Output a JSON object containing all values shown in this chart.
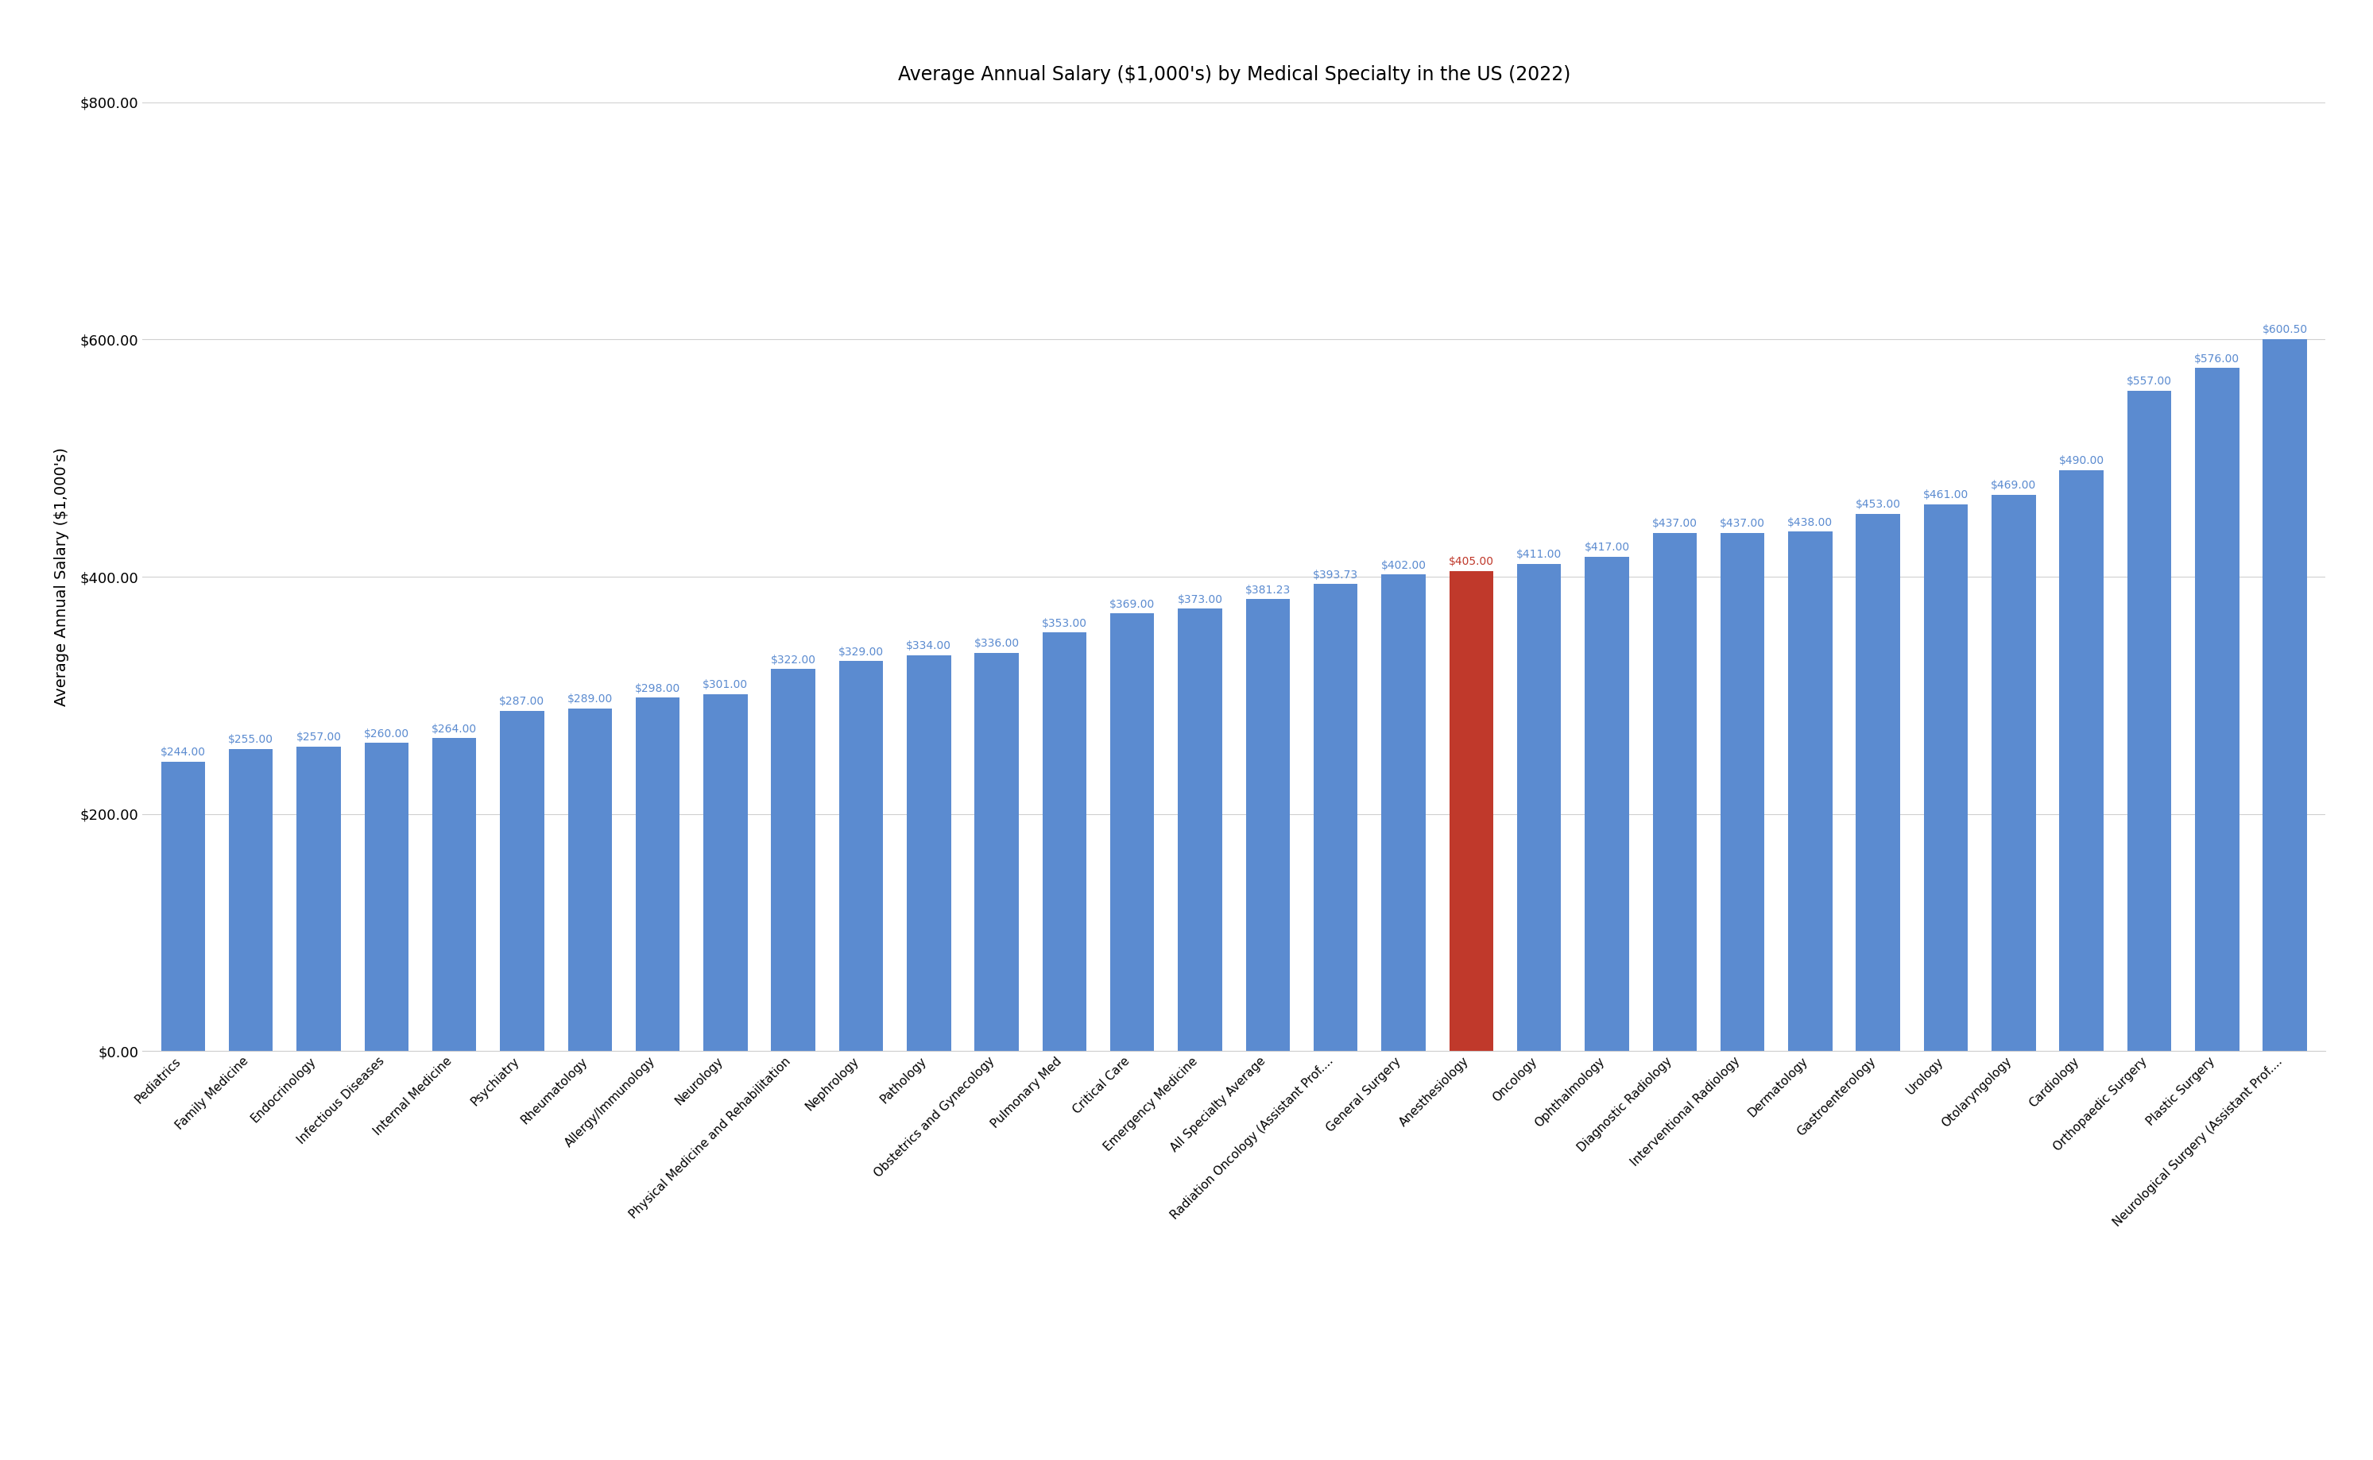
{
  "title": "Average Annual Salary ($1,000's) by Medical Specialty in the US (2022)",
  "ylabel": "Average Annual Salary ($1,000's)",
  "categories": [
    "Pediatrics",
    "Family Medicine",
    "Endocrinology",
    "Infectious Diseases",
    "Internal Medicine",
    "Psychiatry",
    "Rheumatology",
    "Allergy/Immunology",
    "Neurology",
    "Physical Medicine and Rehabilitation",
    "Nephrology",
    "Pathology",
    "Obstetrics and Gynecology",
    "Pulmonary Med",
    "Critical Care",
    "Emergency Medicine",
    "All Specialty Average",
    "Radiation Oncology (Assistant Prof....",
    "General Surgery",
    "Anesthesiology",
    "Oncology",
    "Ophthalmology",
    "Diagnostic Radiology",
    "Interventional Radiology",
    "Dermatology",
    "Gastroenterology",
    "Urology",
    "Otolaryngology",
    "Cardiology",
    "Orthopaedic Surgery",
    "Plastic Surgery",
    "Neurological Surgery (Assistant Prof...."
  ],
  "values": [
    244.0,
    255.0,
    257.0,
    260.0,
    264.0,
    287.0,
    289.0,
    298.0,
    301.0,
    322.0,
    329.0,
    334.0,
    336.0,
    353.0,
    369.0,
    373.0,
    381.23,
    393.73,
    402.0,
    405.0,
    411.0,
    417.0,
    437.0,
    437.0,
    438.0,
    453.0,
    461.0,
    469.0,
    490.0,
    557.0,
    576.0,
    600.5
  ],
  "bar_colors": [
    "#5b8bd0",
    "#5b8bd0",
    "#5b8bd0",
    "#5b8bd0",
    "#5b8bd0",
    "#5b8bd0",
    "#5b8bd0",
    "#5b8bd0",
    "#5b8bd0",
    "#5b8bd0",
    "#5b8bd0",
    "#5b8bd0",
    "#5b8bd0",
    "#5b8bd0",
    "#5b8bd0",
    "#5b8bd0",
    "#5b8bd0",
    "#5b8bd0",
    "#5b8bd0",
    "#c0392b",
    "#5b8bd0",
    "#5b8bd0",
    "#5b8bd0",
    "#5b8bd0",
    "#5b8bd0",
    "#5b8bd0",
    "#5b8bd0",
    "#5b8bd0",
    "#5b8bd0",
    "#5b8bd0",
    "#5b8bd0",
    "#5b8bd0"
  ],
  "label_colors": [
    "#5b8bd0",
    "#5b8bd0",
    "#5b8bd0",
    "#5b8bd0",
    "#5b8bd0",
    "#5b8bd0",
    "#5b8bd0",
    "#5b8bd0",
    "#5b8bd0",
    "#5b8bd0",
    "#5b8bd0",
    "#5b8bd0",
    "#5b8bd0",
    "#5b8bd0",
    "#5b8bd0",
    "#5b8bd0",
    "#5b8bd0",
    "#5b8bd0",
    "#5b8bd0",
    "#c0392b",
    "#5b8bd0",
    "#5b8bd0",
    "#5b8bd0",
    "#5b8bd0",
    "#5b8bd0",
    "#5b8bd0",
    "#5b8bd0",
    "#5b8bd0",
    "#5b8bd0",
    "#5b8bd0",
    "#5b8bd0",
    "#5b8bd0"
  ],
  "value_labels": [
    "$244.00",
    "$255.00",
    "$257.00",
    "$260.00",
    "$264.00",
    "$287.00",
    "$289.00",
    "$298.00",
    "$301.00",
    "$322.00",
    "$329.00",
    "$334.00",
    "$336.00",
    "$353.00",
    "$369.00",
    "$373.00",
    "$381.23",
    "$393.73",
    "$402.00",
    "$405.00",
    "$411.00",
    "$417.00",
    "$437.00",
    "$437.00",
    "$438.00",
    "$453.00",
    "$461.00",
    "$469.00",
    "$490.00",
    "$557.00",
    "$576.00",
    "$600.50"
  ],
  "ylim": [
    0,
    800
  ],
  "yticks": [
    0,
    200,
    400,
    600,
    800
  ],
  "ytick_labels": [
    "$0.00",
    "$200.00",
    "$400.00",
    "$600.00",
    "$800.00"
  ],
  "background_color": "#ffffff",
  "title_fontsize": 17,
  "label_fontsize": 10,
  "ylabel_fontsize": 14,
  "xtick_fontsize": 11,
  "ytick_fontsize": 13,
  "bar_width": 0.65
}
